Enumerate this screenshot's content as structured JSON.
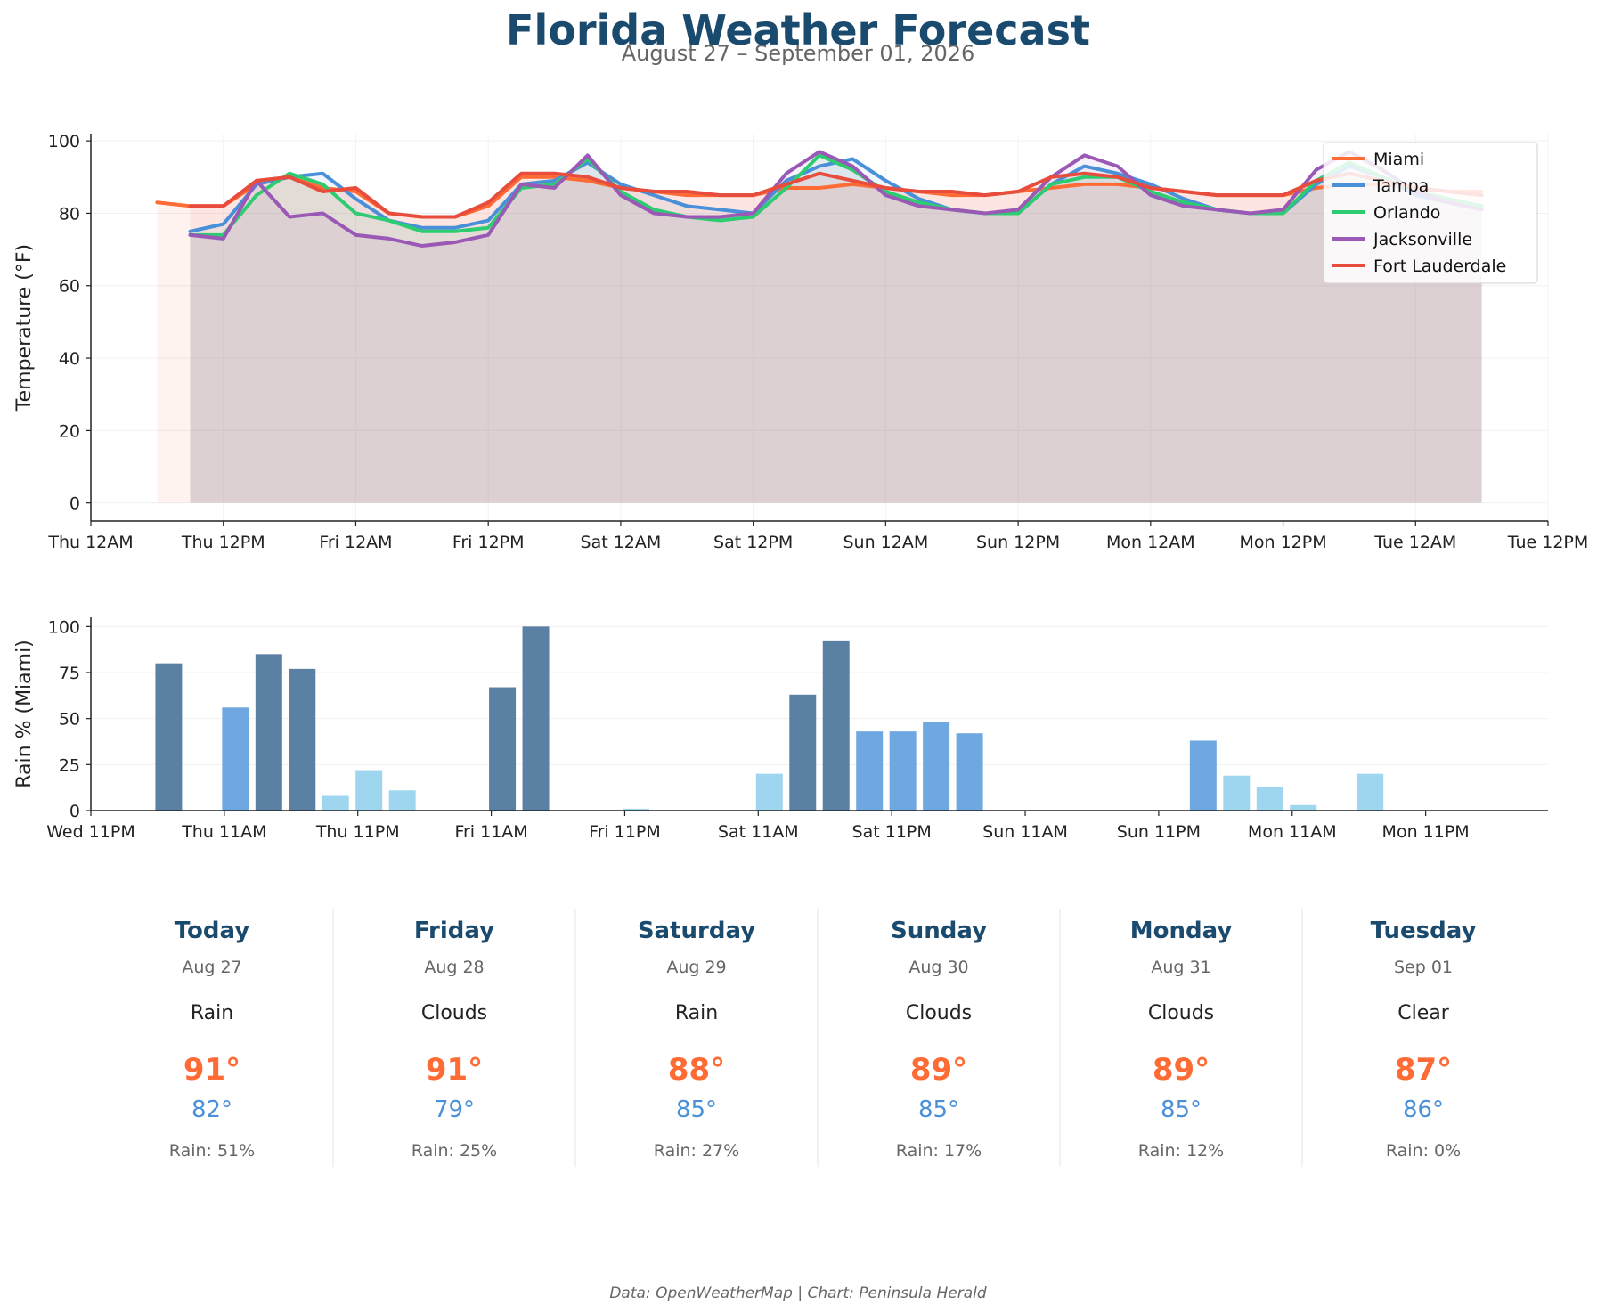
{
  "header": {
    "title": "Florida Weather Forecast",
    "subtitle": "August 27 – September 01, 2026"
  },
  "footer": {
    "credit": "Data: OpenWeatherMap | Chart: Peninsula Herald"
  },
  "colors": {
    "title": "#1a4a6e",
    "high_temp": "#ff6b35",
    "low_temp": "#4a90d9",
    "rain_heavy": "#5a80a4",
    "rain_medium": "#6fa8e0",
    "rain_light": "#9fd6ef"
  },
  "chart_data": [
    {
      "type": "line",
      "ylabel": "Temperature (°F)",
      "ylim": [
        -5,
        102
      ],
      "xlim_hours": [
        0,
        132
      ],
      "yticks": [
        0,
        20,
        40,
        60,
        80,
        100
      ],
      "x_ticks": [
        {
          "hour": 0,
          "label": "Thu 12AM"
        },
        {
          "hour": 12,
          "label": "Thu 12PM"
        },
        {
          "hour": 24,
          "label": "Fri 12AM"
        },
        {
          "hour": 36,
          "label": "Fri 12PM"
        },
        {
          "hour": 48,
          "label": "Sat 12AM"
        },
        {
          "hour": 60,
          "label": "Sat 12PM"
        },
        {
          "hour": 72,
          "label": "Sun 12AM"
        },
        {
          "hour": 84,
          "label": "Sun 12PM"
        },
        {
          "hour": 96,
          "label": "Mon 12AM"
        },
        {
          "hour": 108,
          "label": "Mon 12PM"
        },
        {
          "hour": 120,
          "label": "Tue 12AM"
        },
        {
          "hour": 132,
          "label": "Tue 12PM"
        }
      ],
      "grid": true,
      "legend_position": "top-right",
      "series": [
        {
          "name": "Miami",
          "color": "#ff6b35",
          "fill": "#ff6b35",
          "x": [
            6,
            9,
            12,
            15,
            18,
            21,
            24,
            27,
            30,
            33,
            36,
            39,
            42,
            45,
            48,
            51,
            54,
            57,
            60,
            63,
            66,
            69,
            72,
            75,
            78,
            81,
            84,
            87,
            90,
            93,
            96,
            99,
            102,
            105,
            108,
            111,
            114,
            117,
            120,
            123,
            126
          ],
          "y": [
            83,
            82,
            82,
            88,
            90,
            87,
            86,
            80,
            79,
            79,
            82,
            90,
            90,
            89,
            87,
            86,
            85,
            85,
            85,
            87,
            87,
            88,
            87,
            86,
            85,
            85,
            86,
            87,
            88,
            88,
            87,
            86,
            85,
            85,
            85,
            87,
            88,
            88,
            87,
            86,
            86
          ]
        },
        {
          "name": "Tampa",
          "color": "#4a90d9",
          "fill": "#4a90d9",
          "x": [
            9,
            12,
            15,
            18,
            21,
            24,
            27,
            30,
            33,
            36,
            39,
            42,
            45,
            48,
            51,
            54,
            57,
            60,
            63,
            66,
            69,
            72,
            75,
            78,
            81,
            84,
            87,
            90,
            93,
            96,
            99,
            102,
            105,
            108,
            111,
            114,
            117,
            120,
            123,
            126
          ],
          "y": [
            75,
            77,
            88,
            90,
            91,
            84,
            78,
            76,
            76,
            78,
            88,
            89,
            94,
            88,
            85,
            82,
            81,
            80,
            89,
            93,
            95,
            89,
            84,
            81,
            80,
            80,
            88,
            93,
            91,
            88,
            84,
            81,
            80,
            80,
            88,
            93,
            90,
            85,
            83,
            81
          ]
        },
        {
          "name": "Orlando",
          "color": "#2ecc71",
          "fill": "#2ecc71",
          "x": [
            9,
            12,
            15,
            18,
            21,
            24,
            27,
            30,
            33,
            36,
            39,
            42,
            45,
            48,
            51,
            54,
            57,
            60,
            63,
            66,
            69,
            72,
            75,
            78,
            81,
            84,
            87,
            90,
            93,
            96,
            99,
            102,
            105,
            108,
            111,
            114,
            117,
            120,
            123,
            126
          ],
          "y": [
            74,
            74,
            85,
            91,
            88,
            80,
            78,
            75,
            75,
            76,
            87,
            88,
            95,
            86,
            81,
            79,
            78,
            79,
            87,
            96,
            92,
            86,
            83,
            81,
            80,
            80,
            88,
            90,
            90,
            86,
            83,
            81,
            80,
            80,
            89,
            94,
            90,
            86,
            84,
            82
          ]
        },
        {
          "name": "Jacksonville",
          "color": "#9b59b6",
          "fill": "#9b59b6",
          "x": [
            9,
            12,
            15,
            18,
            21,
            24,
            27,
            30,
            33,
            36,
            39,
            42,
            45,
            48,
            51,
            54,
            57,
            60,
            63,
            66,
            69,
            72,
            75,
            78,
            81,
            84,
            87,
            90,
            93,
            96,
            99,
            102,
            105,
            108,
            111,
            114,
            117,
            120,
            123,
            126
          ],
          "y": [
            74,
            73,
            89,
            79,
            80,
            74,
            73,
            71,
            72,
            74,
            88,
            87,
            96,
            85,
            80,
            79,
            79,
            80,
            91,
            97,
            93,
            85,
            82,
            81,
            80,
            81,
            90,
            96,
            93,
            85,
            82,
            81,
            80,
            81,
            92,
            97,
            92,
            86,
            83,
            81
          ]
        },
        {
          "name": "Fort Lauderdale",
          "color": "#e74c3c",
          "fill": "#e74c3c",
          "x": [
            9,
            12,
            15,
            18,
            21,
            24,
            27,
            30,
            33,
            36,
            39,
            42,
            45,
            48,
            51,
            54,
            57,
            60,
            63,
            66,
            69,
            72,
            75,
            78,
            81,
            84,
            87,
            90,
            93,
            96,
            99,
            102,
            105,
            108,
            111,
            114,
            117,
            120,
            123,
            126
          ],
          "y": [
            82,
            82,
            89,
            90,
            86,
            87,
            80,
            79,
            79,
            83,
            91,
            91,
            90,
            87,
            86,
            86,
            85,
            85,
            88,
            91,
            89,
            87,
            86,
            86,
            85,
            86,
            90,
            91,
            90,
            87,
            86,
            85,
            85,
            85,
            89,
            91,
            89,
            87,
            86,
            85
          ]
        }
      ]
    },
    {
      "type": "bar",
      "ylabel": "Rain % (Miami)",
      "ylim": [
        0,
        105
      ],
      "yticks": [
        0,
        25,
        50,
        75,
        100
      ],
      "xlim_hours": [
        0,
        131
      ],
      "x_ticks": [
        {
          "hour": 0,
          "label": "Wed 11PM"
        },
        {
          "hour": 12,
          "label": "Thu 11AM"
        },
        {
          "hour": 24,
          "label": "Thu 11PM"
        },
        {
          "hour": 36,
          "label": "Fri 11AM"
        },
        {
          "hour": 48,
          "label": "Fri 11PM"
        },
        {
          "hour": 60,
          "label": "Sat 11AM"
        },
        {
          "hour": 72,
          "label": "Sat 11PM"
        },
        {
          "hour": 84,
          "label": "Sun 11AM"
        },
        {
          "hour": 96,
          "label": "Sun 11PM"
        },
        {
          "hour": 108,
          "label": "Mon 11AM"
        },
        {
          "hour": 120,
          "label": "Mon 11PM"
        }
      ],
      "x": [
        7,
        10,
        13,
        16,
        19,
        22,
        25,
        28,
        31,
        34,
        37,
        40,
        43,
        46,
        49,
        52,
        55,
        58,
        61,
        64,
        67,
        70,
        73,
        76,
        79,
        82,
        85,
        88,
        91,
        94,
        97,
        100,
        103,
        106,
        109,
        112,
        115,
        118,
        121,
        124,
        127
      ],
      "values": [
        80,
        0,
        56,
        85,
        77,
        8,
        22,
        11,
        0,
        0,
        67,
        100,
        0,
        0,
        1,
        0,
        0,
        0,
        20,
        63,
        92,
        43,
        43,
        48,
        42,
        0,
        0,
        0,
        0,
        0,
        0,
        38,
        19,
        13,
        3,
        0,
        20,
        0,
        0,
        0,
        0
      ],
      "grid": true
    }
  ],
  "days": [
    {
      "name": "Today",
      "date": "Aug 27",
      "condition": "Rain",
      "high": "91°",
      "low": "82°",
      "rain": "Rain: 51%"
    },
    {
      "name": "Friday",
      "date": "Aug 28",
      "condition": "Clouds",
      "high": "91°",
      "low": "79°",
      "rain": "Rain: 25%"
    },
    {
      "name": "Saturday",
      "date": "Aug 29",
      "condition": "Rain",
      "high": "88°",
      "low": "85°",
      "rain": "Rain: 27%"
    },
    {
      "name": "Sunday",
      "date": "Aug 30",
      "condition": "Clouds",
      "high": "89°",
      "low": "85°",
      "rain": "Rain: 17%"
    },
    {
      "name": "Monday",
      "date": "Aug 31",
      "condition": "Clouds",
      "high": "89°",
      "low": "85°",
      "rain": "Rain: 12%"
    },
    {
      "name": "Tuesday",
      "date": "Sep 01",
      "condition": "Clear",
      "high": "87°",
      "low": "86°",
      "rain": "Rain: 0%"
    }
  ]
}
